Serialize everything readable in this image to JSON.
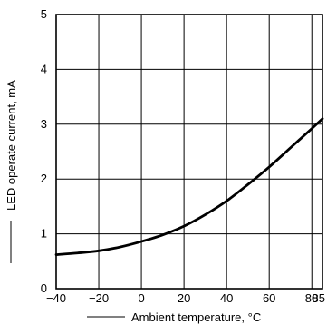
{
  "chart_data": {
    "type": "line",
    "xlabel": "Ambient temperature, °C",
    "ylabel": "LED operate current, mA",
    "xlim": [
      -40,
      85
    ],
    "ylim": [
      0,
      5
    ],
    "x_ticks": [
      -40,
      -20,
      0,
      20,
      40,
      60,
      80,
      85
    ],
    "x_tick_labels": [
      "−40",
      "−20",
      "0",
      "20",
      "40",
      "60",
      "80",
      "85"
    ],
    "y_ticks": [
      0,
      1,
      2,
      3,
      4,
      5
    ],
    "y_tick_labels": [
      "0",
      "1",
      "2",
      "3",
      "4",
      "5"
    ],
    "grid": true,
    "series": [
      {
        "x": [
          -40,
          -30,
          -20,
          -10,
          0,
          10,
          20,
          30,
          40,
          50,
          60,
          70,
          80,
          85
        ],
        "y": [
          0.62,
          0.65,
          0.69,
          0.76,
          0.86,
          0.98,
          1.14,
          1.35,
          1.6,
          1.9,
          2.22,
          2.57,
          2.92,
          3.1
        ]
      }
    ]
  }
}
